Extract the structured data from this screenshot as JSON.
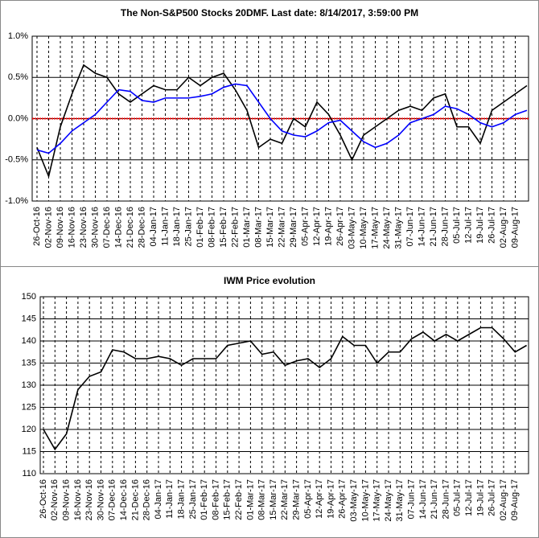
{
  "chart_data": [
    {
      "type": "line",
      "title": "The Non-S&P500 Stocks 20DMF. Last date: 8/14/2017, 3:59:00 PM",
      "categories": [
        "26-Oct-16",
        "02-Nov-16",
        "09-Nov-16",
        "16-Nov-16",
        "23-Nov-16",
        "30-Nov-16",
        "07-Dec-16",
        "14-Dec-16",
        "21-Dec-16",
        "28-Dec-16",
        "04-Jan-17",
        "11-Jan-17",
        "18-Jan-17",
        "25-Jan-17",
        "01-Feb-17",
        "08-Feb-17",
        "15-Feb-17",
        "22-Feb-17",
        "01-Mar-17",
        "08-Mar-17",
        "15-Mar-17",
        "22-Mar-17",
        "29-Mar-17",
        "05-Apr-17",
        "12-Apr-17",
        "19-Apr-17",
        "26-Apr-17",
        "03-May-17",
        "10-May-17",
        "17-May-17",
        "24-May-17",
        "31-May-17",
        "07-Jun-17",
        "14-Jun-17",
        "21-Jun-17",
        "28-Jun-17",
        "05-Jul-17",
        "12-Jul-17",
        "19-Jul-17",
        "26-Jul-17",
        "02-Aug-17",
        "09-Aug-17",
        null
      ],
      "series": [
        {
          "color": "#000000",
          "values": [
            -0.35,
            -0.7,
            -0.1,
            0.3,
            0.65,
            0.55,
            0.5,
            0.3,
            0.2,
            0.3,
            0.4,
            0.35,
            0.35,
            0.5,
            0.4,
            0.5,
            0.55,
            0.35,
            0.1,
            -0.35,
            -0.25,
            -0.3,
            0.0,
            -0.1,
            0.2,
            0.05,
            -0.2,
            -0.5,
            -0.2,
            -0.1,
            0.0,
            0.1,
            0.15,
            0.1,
            0.25,
            0.3,
            -0.1,
            -0.1,
            -0.3,
            0.1,
            0.2,
            0.3,
            0.4
          ]
        },
        {
          "color": "#0000ff",
          "values": [
            -0.38,
            -0.42,
            -0.3,
            -0.15,
            -0.05,
            0.05,
            0.2,
            0.35,
            0.33,
            0.22,
            0.2,
            0.25,
            0.25,
            0.25,
            0.27,
            0.3,
            0.38,
            0.42,
            0.4,
            0.2,
            0.0,
            -0.15,
            -0.2,
            -0.22,
            -0.15,
            -0.05,
            -0.02,
            -0.15,
            -0.28,
            -0.35,
            -0.3,
            -0.2,
            -0.05,
            0.0,
            0.05,
            0.15,
            0.12,
            0.05,
            -0.05,
            -0.1,
            -0.05,
            0.05,
            0.1
          ]
        }
      ],
      "reference_line": {
        "value": 0,
        "color": "#ff0000"
      },
      "ylim": [
        -1.0,
        1.0
      ],
      "yticks": [
        {
          "value": -1.0,
          "label": "-1.0%"
        },
        {
          "value": -0.5,
          "label": "-0.5%"
        },
        {
          "value": 0,
          "label": "0.0%"
        },
        {
          "value": 0.5,
          "label": "0.5%"
        },
        {
          "value": 1.0,
          "label": "1.0%"
        }
      ],
      "grid": true
    },
    {
      "type": "line",
      "title": "IWM Price evolution",
      "categories": [
        "26-Oct-16",
        "02-Nov-16",
        "09-Nov-16",
        "16-Nov-16",
        "23-Nov-16",
        "30-Nov-16",
        "07-Dec-16",
        "14-Dec-16",
        "21-Dec-16",
        "28-Dec-16",
        "04-Jan-17",
        "11-Jan-17",
        "18-Jan-17",
        "25-Jan-17",
        "01-Feb-17",
        "08-Feb-17",
        "15-Feb-17",
        "22-Feb-17",
        "01-Mar-17",
        "08-Mar-17",
        "15-Mar-17",
        "22-Mar-17",
        "29-Mar-17",
        "05-Apr-17",
        "12-Apr-17",
        "19-Apr-17",
        "26-Apr-17",
        "03-May-17",
        "10-May-17",
        "17-May-17",
        "24-May-17",
        "31-May-17",
        "07-Jun-17",
        "14-Jun-17",
        "21-Jun-17",
        "28-Jun-17",
        "05-Jul-17",
        "12-Jul-17",
        "19-Jul-17",
        "26-Jul-17",
        "02-Aug-17",
        "09-Aug-17",
        null
      ],
      "series": [
        {
          "color": "#000000",
          "values": [
            120,
            115.5,
            119,
            129,
            132,
            133,
            138,
            137.5,
            136,
            136,
            136.5,
            136,
            134.5,
            136,
            136,
            136,
            139,
            139.5,
            140,
            137,
            137.5,
            134.5,
            135.5,
            136,
            134,
            136,
            141,
            139,
            139,
            135,
            137.5,
            137.5,
            140.5,
            142,
            140,
            141.5,
            140,
            141.5,
            143,
            143,
            140.5,
            137.5,
            139
          ]
        }
      ],
      "ylim": [
        110,
        150
      ],
      "yticks": [
        110,
        115,
        120,
        125,
        130,
        135,
        140,
        145,
        150
      ],
      "grid": true
    }
  ]
}
